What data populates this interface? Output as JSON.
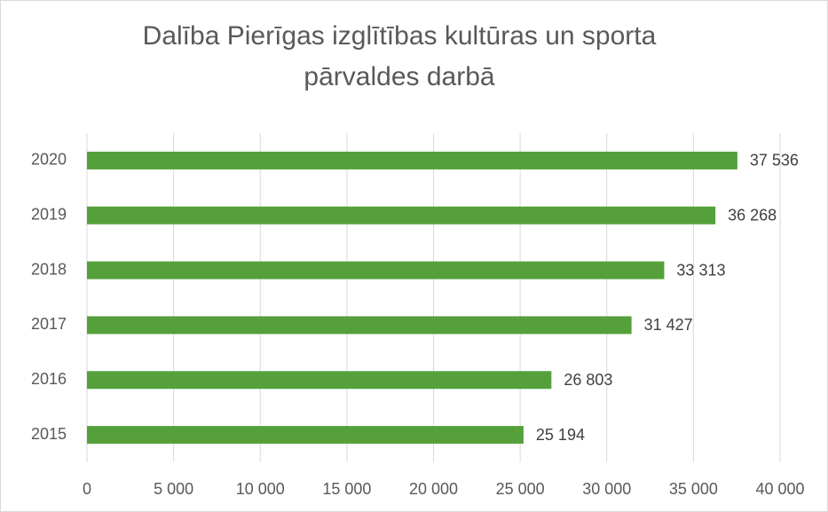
{
  "chart_data": {
    "type": "bar",
    "orientation": "horizontal",
    "title": [
      "Dalība Pierīgas izglītības kultūras un sporta",
      "pārvaldes darbā"
    ],
    "categories": [
      "2015",
      "2016",
      "2017",
      "2018",
      "2019",
      "2020"
    ],
    "values": [
      25194,
      26803,
      31427,
      33313,
      36268,
      37536
    ],
    "value_labels": [
      "25 194",
      "26 803",
      "31 427",
      "33 313",
      "36 268",
      "37 536"
    ],
    "color": "#55a03a",
    "xlim": [
      0,
      40000
    ],
    "xticks": [
      0,
      {
        "value": 5000,
        "label": "5 000"
      },
      {
        "value": 10000,
        "label": "10 000"
      },
      {
        "value": 15000,
        "label": "15 000"
      },
      {
        "value": 20000,
        "label": "20 000"
      },
      {
        "value": 25000,
        "label": "25 000"
      },
      {
        "value": 30000,
        "label": "30 000"
      },
      {
        "value": 35000,
        "label": "35 000"
      },
      {
        "value": 40000,
        "label": "40 000"
      }
    ],
    "grid": true
  }
}
